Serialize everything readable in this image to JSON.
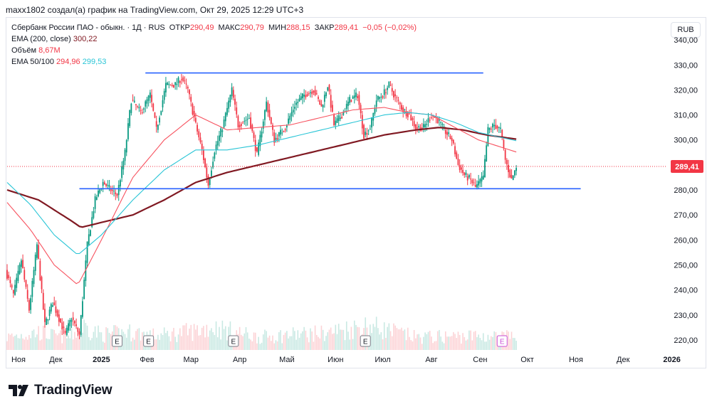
{
  "header": {
    "attribution": "maxx1802 создал(а) график на TradingView.com, Окт 29, 2025 12:29 UTC+3"
  },
  "legend": {
    "symbol": "Сбербанк России ПАО - обыкн. · 1Д · RUS",
    "open_label": "ОТКР",
    "open": "290,49",
    "high_label": "МАКС",
    "high": "290,79",
    "low_label": "МИН",
    "low": "288,15",
    "close_label": "ЗАКР",
    "close": "289,41",
    "change": "−0,05 (−0,02%)",
    "ema200_label": "EMA (200, close)",
    "ema200_value": "300,22",
    "volume_label": "Объём",
    "volume_value": "8,67M",
    "ema50_100_label": "EMA 50/100",
    "ema50_value": "294,96",
    "ema100_value": "299,53"
  },
  "currency_button": "RUB",
  "price_tag": "289,41",
  "earnings_marker": "E",
  "brand": "TradingView",
  "colors": {
    "up": "#089981",
    "down": "#f23645",
    "ema200": "#801922",
    "ema50": "#f7525f",
    "ema100": "#29c5d6",
    "trendline": "#2962ff"
  },
  "chart_data": {
    "type": "candlestick",
    "title": "Сбербанк России ПАО - обыкн. · 1Д · RUS",
    "ylim": [
      216,
      348
    ],
    "y_ticks": [
      "220,00",
      "230,00",
      "240,00",
      "250,00",
      "260,00",
      "270,00",
      "280,00",
      "290,00",
      "300,00",
      "310,00",
      "320,00",
      "330,00",
      "340,00"
    ],
    "x_ticks": [
      "Ноя",
      "Дек",
      "2025",
      "Фев",
      "Мар",
      "Апр",
      "Май",
      "Июн",
      "Июл",
      "Авг",
      "Сен",
      "Окт",
      "Ноя",
      "Дек",
      "2026"
    ],
    "last_price": 289.41,
    "price_path": [
      [
        0,
        248
      ],
      [
        5,
        238
      ],
      [
        10,
        252
      ],
      [
        15,
        232
      ],
      [
        20,
        258
      ],
      [
        25,
        226
      ],
      [
        30,
        235
      ],
      [
        35,
        227
      ],
      [
        38,
        222
      ],
      [
        42,
        229
      ],
      [
        47,
        222
      ],
      [
        52,
        258
      ],
      [
        57,
        276
      ],
      [
        62,
        283
      ],
      [
        67,
        280
      ],
      [
        71,
        278
      ],
      [
        76,
        295
      ],
      [
        80,
        316
      ],
      [
        86,
        311
      ],
      [
        92,
        318
      ],
      [
        96,
        304
      ],
      [
        102,
        322
      ],
      [
        108,
        322
      ],
      [
        112,
        325
      ],
      [
        116,
        320
      ],
      [
        121,
        306
      ],
      [
        125,
        296
      ],
      [
        129,
        282
      ],
      [
        133,
        296
      ],
      [
        138,
        305
      ],
      [
        144,
        320
      ],
      [
        148,
        306
      ],
      [
        155,
        309
      ],
      [
        160,
        294
      ],
      [
        166,
        315
      ],
      [
        171,
        300
      ],
      [
        178,
        305
      ],
      [
        184,
        314
      ],
      [
        190,
        318
      ],
      [
        196,
        320
      ],
      [
        201,
        313
      ],
      [
        205,
        322
      ],
      [
        209,
        306
      ],
      [
        214,
        310
      ],
      [
        219,
        316
      ],
      [
        224,
        318
      ],
      [
        228,
        302
      ],
      [
        232,
        305
      ],
      [
        236,
        316
      ],
      [
        240,
        318
      ],
      [
        244,
        322
      ],
      [
        248,
        317
      ],
      [
        253,
        312
      ],
      [
        257,
        310
      ],
      [
        261,
        305
      ],
      [
        266,
        305
      ],
      [
        271,
        310
      ],
      [
        275,
        308
      ],
      [
        279,
        304
      ],
      [
        284,
        300
      ],
      [
        288,
        290
      ],
      [
        292,
        286
      ],
      [
        296,
        284
      ],
      [
        299,
        281
      ],
      [
        304,
        285
      ],
      [
        307,
        304
      ],
      [
        311,
        306
      ],
      [
        315,
        304
      ],
      [
        318,
        292
      ],
      [
        322,
        284
      ],
      [
        325,
        289.41
      ]
    ],
    "volume_path": [
      [
        0,
        0.5
      ],
      [
        10,
        0.6
      ],
      [
        20,
        0.7
      ],
      [
        30,
        0.55
      ],
      [
        40,
        0.5
      ],
      [
        48,
        0.95
      ],
      [
        60,
        0.6
      ],
      [
        80,
        0.7
      ],
      [
        95,
        0.55
      ],
      [
        120,
        0.75
      ],
      [
        130,
        0.9
      ],
      [
        160,
        0.5
      ],
      [
        180,
        0.6
      ],
      [
        200,
        0.65
      ],
      [
        230,
        0.95
      ],
      [
        260,
        0.5
      ],
      [
        300,
        0.55
      ],
      [
        330,
        0.5
      ]
    ],
    "series": [
      {
        "name": "EMA (200, close)",
        "color": "#801922",
        "points": [
          [
            0,
            280
          ],
          [
            20,
            276
          ],
          [
            40,
            268
          ],
          [
            47,
            265
          ],
          [
            60,
            267
          ],
          [
            80,
            270
          ],
          [
            100,
            276
          ],
          [
            120,
            283
          ],
          [
            140,
            287
          ],
          [
            160,
            290
          ],
          [
            180,
            293
          ],
          [
            200,
            296
          ],
          [
            220,
            299
          ],
          [
            240,
            302
          ],
          [
            260,
            304
          ],
          [
            275,
            305
          ],
          [
            290,
            304
          ],
          [
            305,
            302
          ],
          [
            325,
            300.22
          ]
        ]
      },
      {
        "name": "EMA 50",
        "color": "#f7525f",
        "points": [
          [
            0,
            275
          ],
          [
            15,
            264
          ],
          [
            30,
            250
          ],
          [
            45,
            242
          ],
          [
            60,
            260
          ],
          [
            80,
            285
          ],
          [
            100,
            300
          ],
          [
            120,
            310
          ],
          [
            140,
            304
          ],
          [
            160,
            305
          ],
          [
            180,
            306
          ],
          [
            200,
            309
          ],
          [
            220,
            312
          ],
          [
            240,
            313
          ],
          [
            255,
            311
          ],
          [
            270,
            310
          ],
          [
            285,
            305
          ],
          [
            300,
            300
          ],
          [
            325,
            294.96
          ]
        ]
      },
      {
        "name": "EMA 100",
        "color": "#29c5d6",
        "points": [
          [
            0,
            283
          ],
          [
            15,
            274
          ],
          [
            30,
            262
          ],
          [
            45,
            254
          ],
          [
            60,
            262
          ],
          [
            80,
            276
          ],
          [
            100,
            288
          ],
          [
            120,
            296
          ],
          [
            140,
            296
          ],
          [
            160,
            298
          ],
          [
            180,
            301
          ],
          [
            200,
            304
          ],
          [
            220,
            307
          ],
          [
            240,
            310
          ],
          [
            255,
            311
          ],
          [
            270,
            310
          ],
          [
            285,
            307
          ],
          [
            300,
            303
          ],
          [
            325,
            299.53
          ]
        ]
      }
    ],
    "trendlines": [
      {
        "name": "resistance",
        "x1": 88,
        "x2": 303,
        "y": 326.8,
        "color": "#2962ff"
      },
      {
        "name": "support",
        "x1": 46,
        "x2": 365,
        "y": 280.5,
        "color": "#2962ff"
      }
    ],
    "earnings_at": [
      70,
      90,
      144,
      228,
      315
    ]
  }
}
